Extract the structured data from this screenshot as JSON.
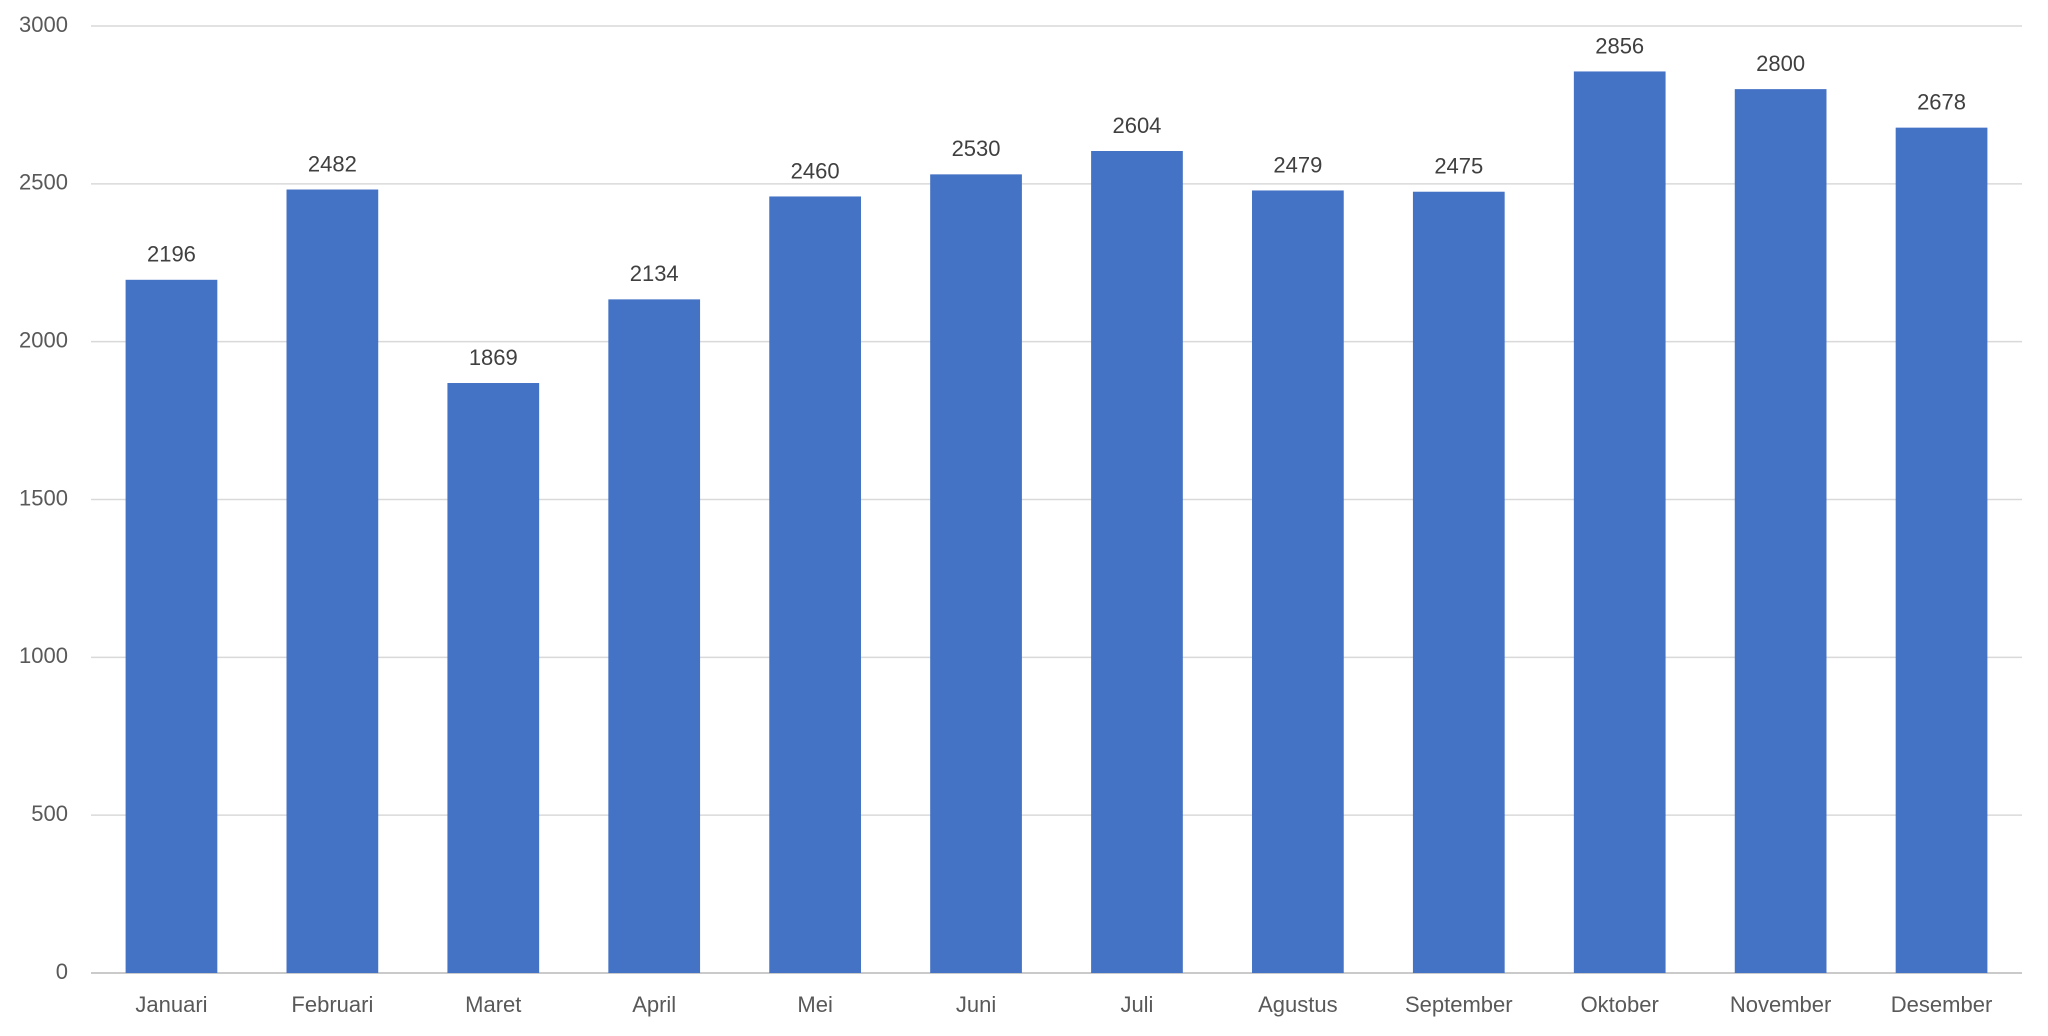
{
  "chart_data": {
    "type": "bar",
    "categories": [
      "Januari",
      "Februari",
      "Maret",
      "April",
      "Mei",
      "Juni",
      "Juli",
      "Agustus",
      "September",
      "Oktober",
      "November",
      "Desember"
    ],
    "values": [
      2196,
      2482,
      1869,
      2134,
      2460,
      2530,
      2604,
      2479,
      2475,
      2856,
      2800,
      2678
    ],
    "color": "#4472c4",
    "ylim": [
      0,
      3000
    ],
    "yticks": [
      0,
      500,
      1000,
      1500,
      2000,
      2500,
      3000
    ],
    "grid": true
  }
}
